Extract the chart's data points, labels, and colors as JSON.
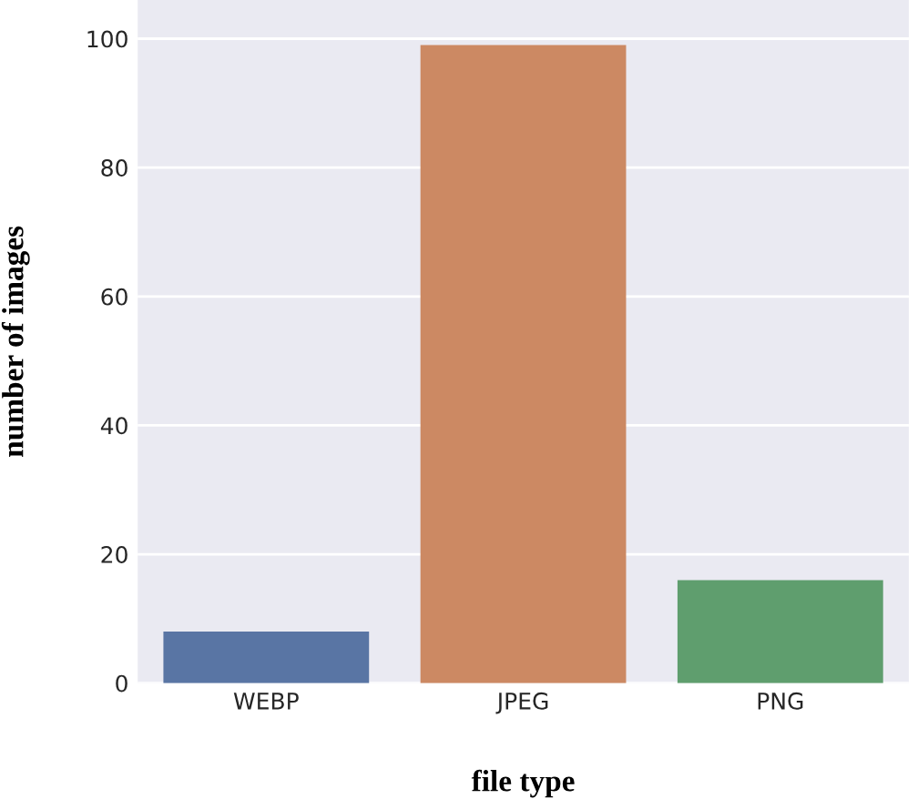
{
  "chart_data": {
    "type": "bar",
    "xlabel": "file type",
    "ylabel": "number of images",
    "categories": [
      "WEBP",
      "JPEG",
      "PNG"
    ],
    "values": [
      8,
      99,
      16
    ],
    "colors": [
      "#5975a4",
      "#cc8963",
      "#5f9e6e"
    ],
    "ylim": [
      0,
      106
    ],
    "yticks": [
      0,
      20,
      40,
      60,
      80,
      100
    ],
    "grid": "y"
  }
}
